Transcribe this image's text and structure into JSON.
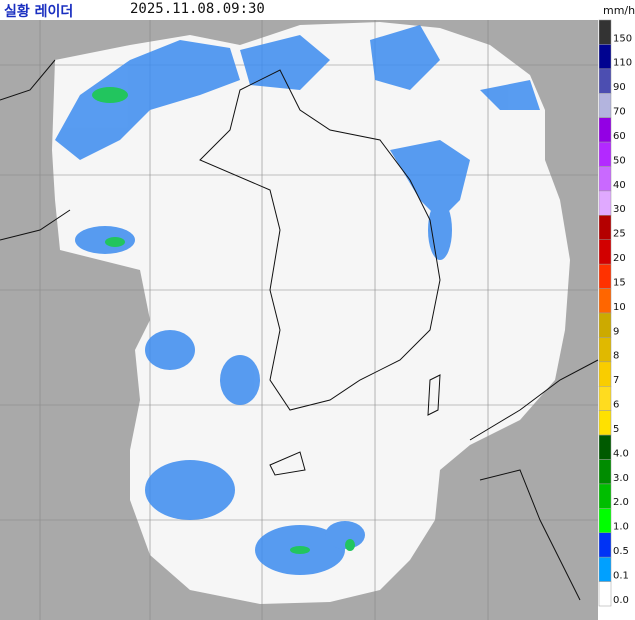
{
  "header": {
    "title": "실황 레이더",
    "time": "2025.11.08.09:30",
    "unit": "mm/h"
  },
  "legend": {
    "items": [
      {
        "label": "150",
        "color": "#333333"
      },
      {
        "label": "110",
        "color": "#000390"
      },
      {
        "label": "90",
        "color": "#4c4eb1"
      },
      {
        "label": "70",
        "color": "#b3b4de"
      },
      {
        "label": "60",
        "color": "#9300e4"
      },
      {
        "label": "50",
        "color": "#b329ff"
      },
      {
        "label": "40",
        "color": "#c969ff"
      },
      {
        "label": "30",
        "color": "#e0a9ff"
      },
      {
        "label": "25",
        "color": "#b40000"
      },
      {
        "label": "20",
        "color": "#d20000"
      },
      {
        "label": "15",
        "color": "#ff3200"
      },
      {
        "label": "10",
        "color": "#ff6600"
      },
      {
        "label": "9",
        "color": "#ccaa00"
      },
      {
        "label": "8",
        "color": "#e0b900"
      },
      {
        "label": "7",
        "color": "#f9cd00"
      },
      {
        "label": "6",
        "color": "#ffdc1f"
      },
      {
        "label": "5",
        "color": "#ffe100"
      },
      {
        "label": "4.0",
        "color": "#005a00"
      },
      {
        "label": "3.0",
        "color": "#008c00"
      },
      {
        "label": "2.0",
        "color": "#00be00"
      },
      {
        "label": "1.0",
        "color": "#00ff00"
      },
      {
        "label": "0.5",
        "color": "#0033f5"
      },
      {
        "label": "0.1",
        "color": "#00a0ff"
      },
      {
        "label": "0.0",
        "color": "#ffffff"
      }
    ]
  }
}
